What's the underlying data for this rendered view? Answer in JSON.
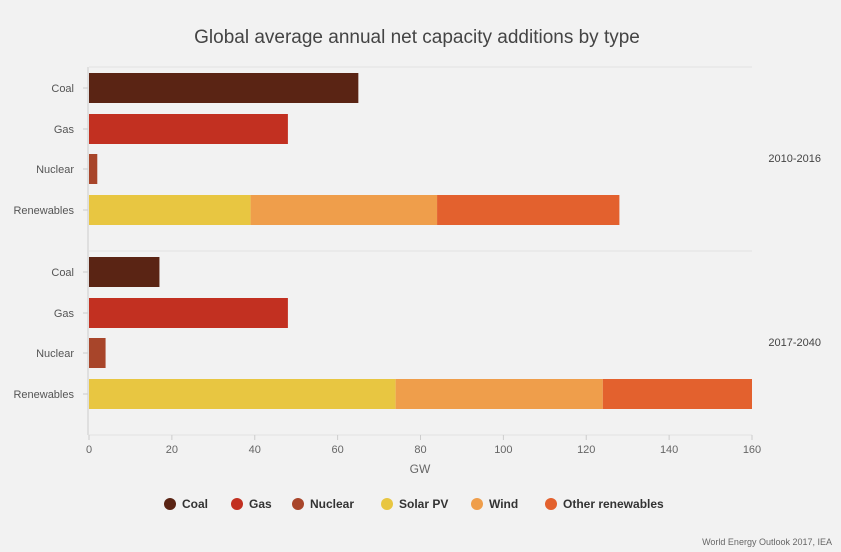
{
  "chart_data": {
    "type": "bar",
    "orientation": "horizontal",
    "stacked": true,
    "title": "Global average annual net capacity additions by type",
    "xlabel": "GW",
    "ylabel": "",
    "xlim": [
      0,
      160
    ],
    "xticks": [
      0,
      20,
      40,
      60,
      80,
      100,
      120,
      140,
      160
    ],
    "grid": false,
    "legend_position": "bottom",
    "source": "World Energy Outlook 2017, IEA",
    "legend": [
      {
        "name": "Coal",
        "color": "#5a2414"
      },
      {
        "name": "Gas",
        "color": "#c23021"
      },
      {
        "name": "Nuclear",
        "color": "#a8452a"
      },
      {
        "name": "Solar PV",
        "color": "#e8c641"
      },
      {
        "name": "Wind",
        "color": "#ef9e4b"
      },
      {
        "name": "Other renewables",
        "color": "#e3612e"
      }
    ],
    "groups": [
      {
        "name": "2010-2016",
        "bars": [
          {
            "category": "Coal",
            "segments": [
              {
                "series": "Coal",
                "value": 65
              }
            ]
          },
          {
            "category": "Gas",
            "segments": [
              {
                "series": "Gas",
                "value": 48
              }
            ]
          },
          {
            "category": "Nuclear",
            "segments": [
              {
                "series": "Nuclear",
                "value": 2
              }
            ]
          },
          {
            "category": "Renewables",
            "segments": [
              {
                "series": "Solar PV",
                "value": 39
              },
              {
                "series": "Wind",
                "value": 45
              },
              {
                "series": "Other renewables",
                "value": 44
              }
            ]
          }
        ]
      },
      {
        "name": "2017-2040",
        "bars": [
          {
            "category": "Coal",
            "segments": [
              {
                "series": "Coal",
                "value": 17
              }
            ]
          },
          {
            "category": "Gas",
            "segments": [
              {
                "series": "Gas",
                "value": 48
              }
            ]
          },
          {
            "category": "Nuclear",
            "segments": [
              {
                "series": "Nuclear",
                "value": 4
              }
            ]
          },
          {
            "category": "Renewables",
            "segments": [
              {
                "series": "Solar PV",
                "value": 74
              },
              {
                "series": "Wind",
                "value": 50
              },
              {
                "series": "Other renewables",
                "value": 36
              }
            ]
          }
        ]
      }
    ]
  }
}
